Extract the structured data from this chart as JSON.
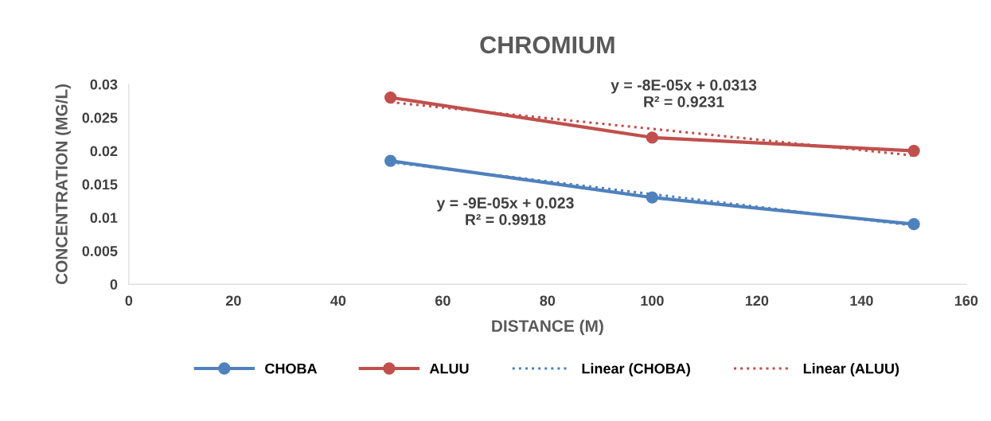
{
  "chart_data": {
    "type": "line",
    "title": "CHROMIUM",
    "xlabel": "DISTANCE (M)",
    "ylabel": "CONCENTRATION (MG/L)",
    "x": [
      50,
      100,
      150
    ],
    "series": [
      {
        "name": "CHOBA",
        "color": "#4f81bd",
        "values": [
          0.0185,
          0.013,
          0.009
        ],
        "marker": "circle",
        "line_style": "solid"
      },
      {
        "name": "ALUU",
        "color": "#c0504d",
        "values": [
          0.028,
          0.022,
          0.02
        ],
        "marker": "circle",
        "line_style": "solid"
      },
      {
        "name": "Linear (CHOBA)",
        "color": "#4f81bd",
        "values": [
          0.0183,
          0.0135,
          0.0088
        ],
        "marker": "none",
        "line_style": "dotted"
      },
      {
        "name": "Linear (ALUU)",
        "color": "#c0504d",
        "values": [
          0.0273,
          0.0233,
          0.0193
        ],
        "marker": "none",
        "line_style": "dotted"
      }
    ],
    "xlim": [
      0,
      160
    ],
    "xticks": [
      0,
      20,
      40,
      60,
      80,
      100,
      120,
      140,
      160
    ],
    "ylim": [
      0,
      0.03
    ],
    "yticks": [
      0,
      0.005,
      0.01,
      0.015,
      0.02,
      0.025,
      0.03
    ],
    "annotations": [
      "y = -8E-05x + 0.0313\nR² = 0.9231",
      "y = -9E-05x + 0.023\nR² = 0.9918"
    ],
    "grid": false,
    "legend": "bottom"
  }
}
